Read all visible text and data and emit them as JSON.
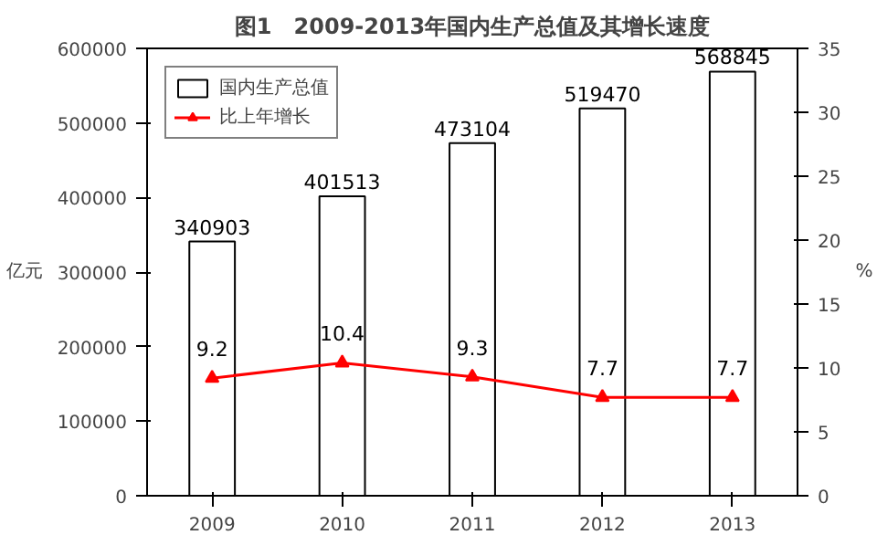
{
  "chart_data": {
    "type": "bar",
    "title": "图1　2009-2013年国内生产总值及其增长速度",
    "ylabel": "亿元",
    "y2label": "%",
    "categories": [
      "2009",
      "2010",
      "2011",
      "2012",
      "2013"
    ],
    "series": [
      {
        "name": "国内生产总值",
        "color": "#ffffff",
        "values": [
          340903,
          401513,
          473104,
          519470,
          568845
        ]
      },
      {
        "name": "比上年增长",
        "type": "line",
        "axis": "y2",
        "color": "#ff0000",
        "marker": "triangle",
        "values": [
          9.2,
          10.4,
          9.3,
          7.7,
          7.7
        ]
      }
    ],
    "ylim": [
      0,
      600000
    ],
    "yticks": [
      0,
      100000,
      200000,
      300000,
      400000,
      500000,
      600000
    ],
    "y2lim": [
      0,
      35
    ],
    "y2ticks": [
      0,
      5,
      10,
      15,
      20,
      25,
      30,
      35
    ],
    "data_labels": true,
    "legend": "top left",
    "grid": false
  }
}
